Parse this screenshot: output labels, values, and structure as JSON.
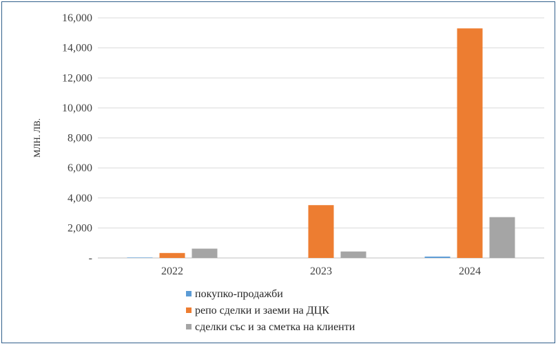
{
  "chart_data": {
    "type": "bar",
    "categories": [
      "2022",
      "2023",
      "2024"
    ],
    "series": [
      {
        "name": "покупко-продажби",
        "values": [
          30,
          0,
          90
        ],
        "color": "#5b9bd5"
      },
      {
        "name": "репо сделки и заеми на ДЦК",
        "values": [
          330,
          3520,
          15300
        ],
        "color": "#ed7d31"
      },
      {
        "name": "сделки със и за сметка на клиенти",
        "values": [
          620,
          430,
          2720
        ],
        "color": "#a5a5a5"
      }
    ],
    "ylabel": "МЛН. ЛВ.",
    "ylim": [
      0,
      16000
    ],
    "yticks": [
      0,
      2000,
      4000,
      6000,
      8000,
      10000,
      12000,
      14000,
      16000
    ],
    "ytick_labels": [
      "-",
      "2,000",
      "4,000",
      "6,000",
      "8,000",
      "10,000",
      "12,000",
      "14,000",
      "16,000"
    ],
    "grid": true,
    "legend_position": "bottom"
  }
}
